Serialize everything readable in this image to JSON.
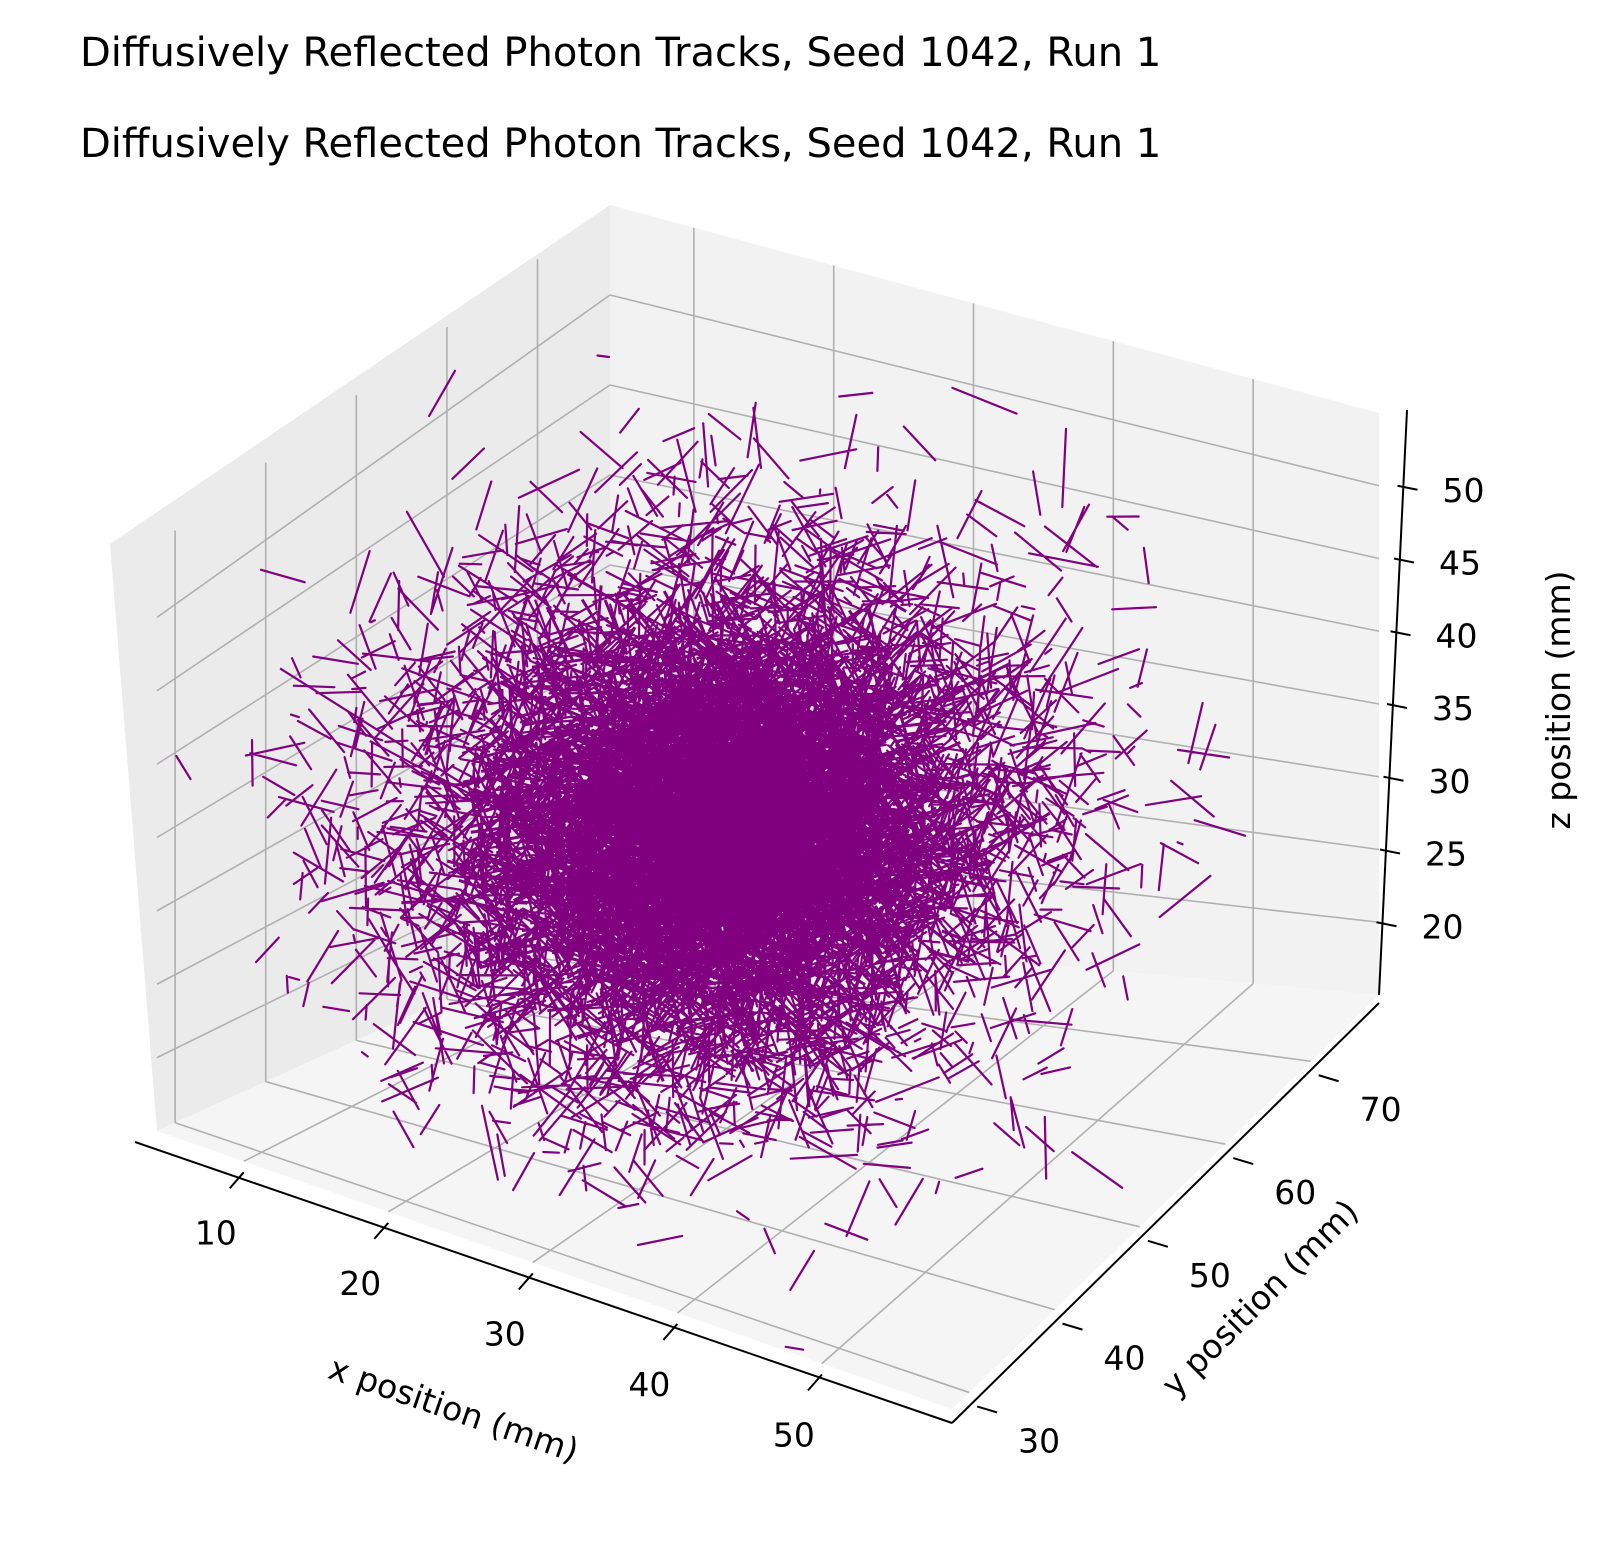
{
  "chart_data": {
    "type": "line3d",
    "titles": [
      "Diffusively Reflected Photon Tracks, Seed 1042, Run 1",
      "Diffusively Reflected Photon Tracks, Seed 1042, Run 1"
    ],
    "xlabel": "x position (mm)",
    "ylabel": "y position (mm)",
    "zlabel": "z position (mm)",
    "x_ticks": [
      "10",
      "20",
      "30",
      "40",
      "50"
    ],
    "y_ticks": [
      "30",
      "40",
      "50",
      "60",
      "70"
    ],
    "z_ticks": [
      "20",
      "25",
      "30",
      "35",
      "40",
      "45",
      "50"
    ],
    "x_range": [
      4,
      59
    ],
    "y_range": [
      28,
      78
    ],
    "z_range": [
      15,
      55
    ],
    "grid": true,
    "series": [
      {
        "color": "#800080",
        "segment_count": 6000,
        "center": [
          30,
          50,
          35
        ],
        "spread": [
          9,
          10,
          7
        ],
        "step_length": 3,
        "outliers": [
          [
            5,
            40,
            42
          ],
          [
            10,
            42,
            38
          ]
        ]
      }
    ]
  },
  "colors": {
    "track": "#800080",
    "pane_left": "#ebebeb",
    "pane_right": "#f2f2f2",
    "pane_floor": "#f5f5f5"
  }
}
